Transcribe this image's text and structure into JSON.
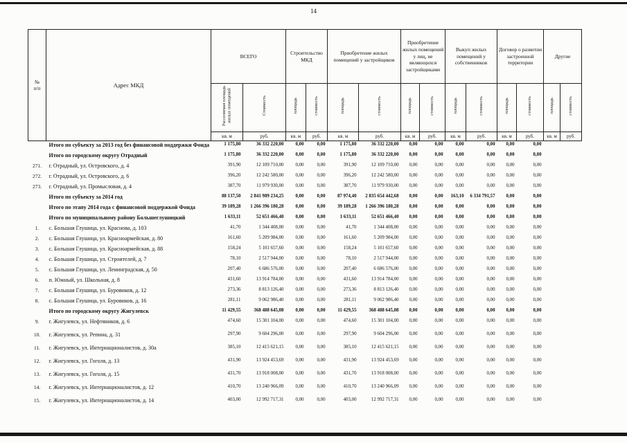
{
  "page": {
    "number": "14"
  },
  "table": {
    "header": {
      "num": "№\nп/п",
      "address": "Адрес МКД",
      "groups": [
        {
          "label": "ВСЕГО",
          "sub": [
            "Расселяемая площадь жилых помещений",
            "Стоимость"
          ]
        },
        {
          "label": "Строительство МКД",
          "sub": [
            "площадь",
            "стоимость"
          ]
        },
        {
          "label": "Приобретение жилых помещений у застройщиков",
          "sub": [
            "площадь",
            "стоимость"
          ]
        },
        {
          "label": "Приобретение жилых помещений у лиц, не являющихся застройщиками",
          "sub": [
            "площадь",
            "стоимость"
          ]
        },
        {
          "label": "Выкуп жилых помещений у собственников",
          "sub": [
            "площадь",
            "стоимость"
          ]
        },
        {
          "label": "Договор о развитии застроенной территории",
          "sub": [
            "площадь",
            "стоимость"
          ]
        },
        {
          "label": "Другие",
          "sub": [
            "площадь",
            "стоимость"
          ]
        }
      ],
      "units": [
        "кв. м",
        "руб."
      ]
    },
    "rows": [
      {
        "num": "",
        "bold": true,
        "address": "Итого по субъекту за 2013 год без финансовой поддержки Фонда",
        "values": [
          "1 175,80",
          "36 332 220,00",
          "0,00",
          "0,00",
          "1 175,80",
          "36 332 220,00",
          "0,00",
          "0,00",
          "0,00",
          "0,00",
          "0,00",
          "0,00",
          "",
          ""
        ]
      },
      {
        "num": "",
        "bold": true,
        "address": "Итого по городскому округу  Отрадный",
        "values": [
          "1 175,80",
          "36 332 220,00",
          "0,00",
          "0,00",
          "1 175,80",
          "36 332 220,00",
          "0,00",
          "0,00",
          "0,00",
          "0,00",
          "0,00",
          "0,00",
          "",
          ""
        ]
      },
      {
        "num": "271.",
        "bold": false,
        "address": "г. Отрадный, ул. Островского, д. 4",
        "values": [
          "391,90",
          "12 109 710,00",
          "0,00",
          "0,00",
          "391,90",
          "12 109 710,00",
          "0,00",
          "0,00",
          "0,00",
          "0,00",
          "0,00",
          "0,00",
          "",
          ""
        ]
      },
      {
        "num": "272.",
        "bold": false,
        "address": "г. Отрадный, ул. Островского, д. 6",
        "values": [
          "396,20",
          "12 242 580,00",
          "0,00",
          "0,00",
          "396,20",
          "12 242 580,00",
          "0,00",
          "0,00",
          "0,00",
          "0,00",
          "0,00",
          "0,00",
          "",
          ""
        ]
      },
      {
        "num": "273.",
        "bold": false,
        "address": "г. Отрадный, ул. Промысловая, д. 4",
        "values": [
          "387,70",
          "11 979 930,00",
          "0,00",
          "0,00",
          "387,70",
          "11 979 930,00",
          "0,00",
          "0,00",
          "0,00",
          "0,00",
          "0,00",
          "0,00",
          "",
          ""
        ]
      },
      {
        "num": "",
        "bold": true,
        "address": "Итого  по субъекту за 2014 год",
        "values": [
          "88 137,50",
          "2 841 989 234,25",
          "0,00",
          "0,00",
          "87 974,40",
          "2 835 654 442,68",
          "0,00",
          "0,00",
          "163,10",
          "6 334 791,57",
          "0,00",
          "0,00",
          "",
          ""
        ]
      },
      {
        "num": "",
        "bold": true,
        "address": "Итого по этапу 2014 года с финансовой поддержкой Фонда",
        "values": [
          "39 189,28",
          "1 266 396 180,28",
          "0,00",
          "0,00",
          "39 189,28",
          "1 266 396 180,28",
          "0,00",
          "0,00",
          "0,00",
          "0,00",
          "0,00",
          "0,00",
          "",
          ""
        ]
      },
      {
        "num": "",
        "bold": true,
        "address": "Итого по муниципальному району Большеглушицкий",
        "values": [
          "1 633,11",
          "52 651 466,40",
          "0,00",
          "0,00",
          "1 633,11",
          "52 651 466,40",
          "0,00",
          "0,00",
          "0,00",
          "0,00",
          "0,00",
          "0,00",
          "",
          ""
        ]
      },
      {
        "num": "1.",
        "bold": false,
        "address": "с. Большая Глушица, ул. Краснова, д. 103",
        "values": [
          "41,70",
          "1 344 408,00",
          "0,00",
          "0,00",
          "41,70",
          "1 344 408,00",
          "0,00",
          "0,00",
          "0,00",
          "0,00",
          "0,00",
          "0,00",
          "",
          ""
        ]
      },
      {
        "num": "2.",
        "bold": false,
        "address": "с. Большая Глушица, ул. Красноармейская, д. 80",
        "values": [
          "161,60",
          "5 209 984,00",
          "0,00",
          "0,00",
          "161,60",
          "5 209 984,00",
          "0,00",
          "0,00",
          "0,00",
          "0,00",
          "0,00",
          "0,00",
          "",
          ""
        ]
      },
      {
        "num": "3.",
        "bold": false,
        "address": "с. Большая Глушица, ул. Красноармейская, д. 88",
        "values": [
          "158,24",
          "5 101 657,60",
          "0,00",
          "0,00",
          "158,24",
          "5 101 657,60",
          "0,00",
          "0,00",
          "0,00",
          "0,00",
          "0,00",
          "0,00",
          "",
          ""
        ]
      },
      {
        "num": "4.",
        "bold": false,
        "address": "с. Большая Глушица, ул. Строителей, д. 7",
        "values": [
          "78,10",
          "2 517 944,00",
          "0,00",
          "0,00",
          "78,10",
          "2 517 944,00",
          "0,00",
          "0,00",
          "0,00",
          "0,00",
          "0,00",
          "0,00",
          "",
          ""
        ]
      },
      {
        "num": "5.",
        "bold": false,
        "address": "с. Большая Глушица, ул. Ленинградская, д. 50",
        "values": [
          "207,40",
          "6 686 576,00",
          "0,00",
          "0,00",
          "207,40",
          "6 686 576,00",
          "0,00",
          "0,00",
          "0,00",
          "0,00",
          "0,00",
          "0,00",
          "",
          ""
        ]
      },
      {
        "num": "6.",
        "bold": false,
        "address": "п. Южный, ул. Школьная, д. 8",
        "values": [
          "431,60",
          "13 914 784,00",
          "0,00",
          "0,00",
          "431,60",
          "13 914 784,00",
          "0,00",
          "0,00",
          "0,00",
          "0,00",
          "0,00",
          "0,00",
          "",
          ""
        ]
      },
      {
        "num": "7.",
        "bold": false,
        "address": "с. Большая Глушица, ул. Буровиков, д. 12",
        "values": [
          "273,36",
          "8 813 126,40",
          "0,00",
          "0,00",
          "273,36",
          "8 813 126,40",
          "0,00",
          "0,00",
          "0,00",
          "0,00",
          "0,00",
          "0,00",
          "",
          ""
        ]
      },
      {
        "num": "8.",
        "bold": false,
        "address": "с. Большая Глушица, ул. Буровиков, д. 16",
        "values": [
          "281,11",
          "9 062 986,40",
          "0,00",
          "0,00",
          "281,11",
          "9 062 986,40",
          "0,00",
          "0,00",
          "0,00",
          "0,00",
          "0,00",
          "0,00",
          "",
          ""
        ]
      },
      {
        "num": "",
        "bold": true,
        "address": "Итого по городскому округу Жигулевск",
        "values": [
          "11 429,55",
          "368 488 645,08",
          "0,00",
          "0,00",
          "11 429,55",
          "368 488 645,08",
          "0,00",
          "0,00",
          "0,00",
          "0,00",
          "0,00",
          "0,00",
          "",
          ""
        ]
      },
      {
        "num": "9.",
        "bold": false,
        "address": "г. Жигулевск, ул. Нефтяников, д. 6",
        "values": [
          "474,60",
          "15 301 104,00",
          "0,00",
          "0,00",
          "474,60",
          "15 301 104,00",
          "0,00",
          "0,00",
          "0,00",
          "0,00",
          "0,00",
          "0,00",
          "",
          ""
        ]
      },
      {
        "num": "10.",
        "bold": false,
        "address": "г. Жигулевск, ул. Репина, д. 31",
        "values": [
          "297,90",
          "9 604 296,00",
          "0,00",
          "0,00",
          "297,90",
          "9 604 296,00",
          "0,00",
          "0,00",
          "0,00",
          "0,00",
          "0,00",
          "0,00",
          "",
          ""
        ]
      },
      {
        "num": "11.",
        "bold": false,
        "address": "г. Жигулевск, ул. Интернационалистов, д. 30а",
        "values": [
          "385,10",
          "12 415 621,15",
          "0,00",
          "0,00",
          "385,10",
          "12 415 621,15",
          "0,00",
          "0,00",
          "0,00",
          "0,00",
          "0,00",
          "0,00",
          "",
          ""
        ]
      },
      {
        "num": "12.",
        "bold": false,
        "address": "г. Жигулевск, ул. Гоголя, д. 13",
        "values": [
          "431,90",
          "13 924 453,69",
          "0,00",
          "0,00",
          "431,90",
          "13 924 453,69",
          "0,00",
          "0,00",
          "0,00",
          "0,00",
          "0,00",
          "0,00",
          "",
          ""
        ]
      },
      {
        "num": "13.",
        "bold": false,
        "address": "г. Жигулевск, ул. Гоголя, д. 15",
        "values": [
          "431,70",
          "13 918 008,00",
          "0,00",
          "0,00",
          "431,70",
          "13 918 008,00",
          "0,00",
          "0,00",
          "0,00",
          "0,00",
          "0,00",
          "0,00",
          "",
          ""
        ]
      },
      {
        "num": "14.",
        "bold": false,
        "address": "г. Жигулевск, ул. Интернационалистов, д. 12",
        "values": [
          "410,70",
          "13 240 966,09",
          "0,00",
          "0,00",
          "410,70",
          "13 240 966,09",
          "0,00",
          "0,00",
          "0,00",
          "0,00",
          "0,00",
          "0,00",
          "",
          ""
        ]
      },
      {
        "num": "15.",
        "bold": false,
        "address": "г. Жигулевск, ул. Интернационалистов, д. 14",
        "values": [
          "403,00",
          "12 992 717,31",
          "0,00",
          "0,00",
          "403,00",
          "12 992 717,31",
          "0,00",
          "0,00",
          "0,00",
          "0,00",
          "0,00",
          "0,00",
          "",
          ""
        ]
      }
    ]
  }
}
